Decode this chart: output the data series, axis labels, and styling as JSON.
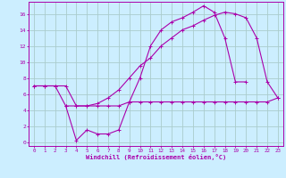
{
  "xlabel": "Windchill (Refroidissement éolien,°C)",
  "background_color": "#cceeff",
  "grid_color": "#aacccc",
  "line_color": "#aa00aa",
  "xlim": [
    -0.5,
    23.5
  ],
  "ylim": [
    -0.5,
    17.5
  ],
  "xticks": [
    0,
    1,
    2,
    3,
    4,
    5,
    6,
    7,
    8,
    9,
    10,
    11,
    12,
    13,
    14,
    15,
    16,
    17,
    18,
    19,
    20,
    21,
    22,
    23
  ],
  "yticks": [
    0,
    2,
    4,
    6,
    8,
    10,
    12,
    14,
    16
  ],
  "line1_x": [
    0,
    1,
    2,
    3,
    4,
    5,
    6,
    7,
    8,
    9,
    10,
    11,
    12,
    13,
    14,
    15,
    16,
    17,
    18,
    19,
    20,
    21,
    22,
    23
  ],
  "line1_y": [
    7,
    7,
    7,
    7,
    4.5,
    4.5,
    4.5,
    4.5,
    4.5,
    5,
    5,
    5,
    5,
    5,
    5,
    5,
    5,
    5,
    5,
    5,
    5,
    5,
    5,
    5.5
  ],
  "line2_x": [
    0,
    1,
    2,
    3,
    4,
    5,
    6,
    7,
    8,
    9,
    10,
    11,
    12,
    13,
    14,
    15,
    16,
    17,
    18,
    19,
    20
  ],
  "line2_y": [
    7,
    7,
    7,
    4.5,
    0.2,
    1.5,
    1.0,
    1.0,
    1.5,
    5,
    8,
    12,
    14,
    15,
    15.5,
    16.2,
    17,
    16.2,
    13,
    7.5,
    7.5
  ],
  "line3_x": [
    3,
    4,
    5,
    6,
    7,
    8,
    9,
    10,
    11,
    12,
    13,
    14,
    15,
    16,
    17,
    18,
    19,
    20,
    21,
    22,
    23
  ],
  "line3_y": [
    4.5,
    4.5,
    4.5,
    4.8,
    5.5,
    6.5,
    8,
    9.5,
    10.5,
    12,
    13,
    14,
    14.5,
    15.2,
    15.8,
    16.2,
    16,
    15.5,
    13,
    7.5,
    5.5
  ]
}
